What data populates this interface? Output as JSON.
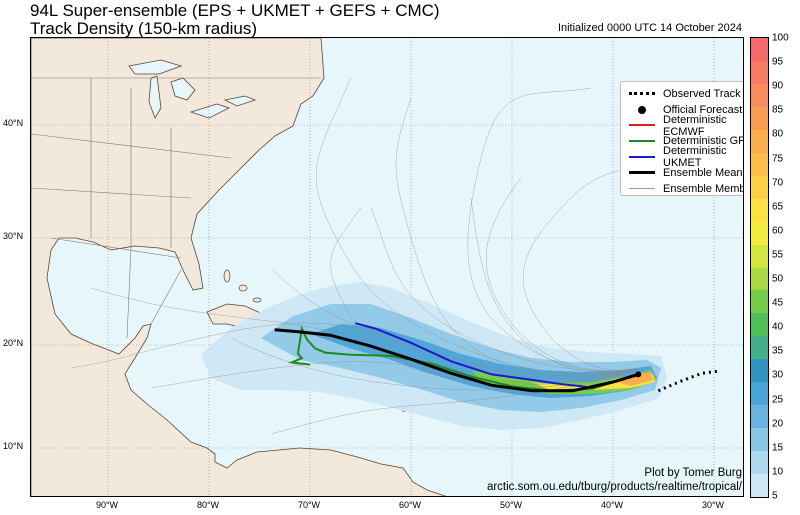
{
  "header": {
    "title_line1": "94L Super-ensemble (EPS + UKMET + GEFS + CMC)",
    "title_line2": "Track Density (150-km radius)",
    "initialized": "Initialized 0000 UTC 14 October 2024"
  },
  "map": {
    "lat_labels": [
      "40°N",
      "30°N",
      "20°N",
      "10°N"
    ],
    "lon_labels": [
      "90°W",
      "80°W",
      "70°W",
      "60°W",
      "50°W",
      "40°W",
      "30°W"
    ],
    "ocean_color": "#e6f6fb",
    "land_color": "#f2e8dc",
    "border_color": "#5a4630"
  },
  "legend": {
    "items": [
      {
        "label": "Observed Track",
        "key": "dotted",
        "color": "#000000"
      },
      {
        "label": "Official Forecast",
        "key": "dot",
        "color": "#000000"
      },
      {
        "label": "Deterministic ECMWF",
        "key": "line",
        "color": "#e02020"
      },
      {
        "label": "Deterministic GFS",
        "key": "line",
        "color": "#1e8a1e"
      },
      {
        "label": "Deterministic UKMET",
        "key": "line",
        "color": "#1a1ad0"
      },
      {
        "label": "Ensemble Mean",
        "key": "thick",
        "color": "#000000"
      },
      {
        "label": "Ensemble Members",
        "key": "thin",
        "color": "#9a9a9a"
      }
    ]
  },
  "tracks": {
    "observed": [
      [
        -35.5,
        15.8
      ],
      [
        -33.5,
        16.6
      ],
      [
        -31.2,
        17.4
      ],
      [
        -29.6,
        17.6
      ]
    ],
    "ensemble_mean": [
      [
        -37.5,
        17.3
      ],
      [
        -40,
        16.6
      ],
      [
        -44,
        15.8
      ],
      [
        -48,
        15.8
      ],
      [
        -52,
        16.3
      ],
      [
        -56,
        17.4
      ],
      [
        -60,
        18.7
      ],
      [
        -64,
        19.9
      ],
      [
        -68,
        20.9
      ],
      [
        -71,
        21.2
      ],
      [
        -73.5,
        21.4
      ]
    ],
    "ukmet": [
      [
        -37.5,
        17.3
      ],
      [
        -42,
        16.1
      ],
      [
        -45,
        16.4
      ],
      [
        -48,
        16.8
      ],
      [
        -52,
        17.3
      ],
      [
        -56,
        18.5
      ],
      [
        -60,
        20.2
      ],
      [
        -63.5,
        21.5
      ],
      [
        -65.5,
        22
      ]
    ],
    "gfs": [
      [
        -37.5,
        17.3
      ],
      [
        -42,
        16
      ],
      [
        -46,
        15.8
      ],
      [
        -50,
        16.2
      ],
      [
        -54,
        17.1
      ],
      [
        -58,
        18.3
      ],
      [
        -62,
        19
      ],
      [
        -66,
        19.1
      ],
      [
        -68.5,
        19.3
      ],
      [
        -69.5,
        19.7
      ],
      [
        -70.3,
        20.5
      ],
      [
        -70.8,
        21.5
      ],
      [
        -71.2,
        19.2
      ],
      [
        -70.8,
        18.8
      ],
      [
        -71.8,
        18.4
      ],
      [
        -70,
        18.2
      ]
    ]
  },
  "colorbar": {
    "ticks": [
      "100",
      "95",
      "90",
      "85",
      "80",
      "75",
      "70",
      "65",
      "60",
      "55",
      "50",
      "45",
      "40",
      "35",
      "30",
      "25",
      "20",
      "15",
      "10",
      "5"
    ],
    "colors": [
      "#f76a6a",
      "#f87b63",
      "#f98c5c",
      "#f99d55",
      "#faae4e",
      "#fbbf49",
      "#fcd044",
      "#fde140",
      "#f4eb3f",
      "#d2e640",
      "#a9da44",
      "#78cc4b",
      "#4fbf58",
      "#43b089",
      "#2f96c2",
      "#4aa2d5",
      "#6ab3df",
      "#8cc6e7",
      "#afd8ef",
      "#cde7f5"
    ]
  },
  "credits": {
    "line1": "Plot by Tomer Burg",
    "line2": "arctic.som.ou.edu/tburg/products/realtime/tropical/"
  }
}
